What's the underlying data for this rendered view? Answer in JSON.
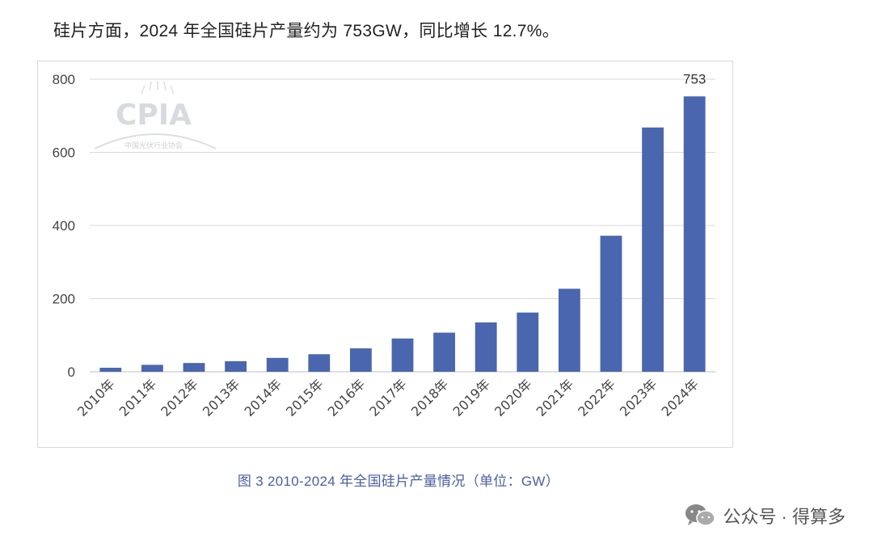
{
  "headline": "硅片方面，2024 年全国硅片产量约为 753GW，同比增长 12.7%。",
  "caption": "图 3    2010-2024 年全国硅片产量情况（单位：GW）",
  "footer": {
    "source": "公众号 · 得算多",
    "icon": "wechat-icon"
  },
  "watermark": {
    "logo": "CPIA",
    "subtitle": "中国光伏行业协会"
  },
  "colors": {
    "bar": "#4a66ae",
    "grid": "#d9d9d9",
    "tick": "#444444",
    "caption": "#4a5fa0"
  },
  "chart_data": {
    "type": "bar",
    "title": "",
    "xlabel": "",
    "ylabel": "",
    "categories": [
      "2010年",
      "2011年",
      "2012年",
      "2013年",
      "2014年",
      "2015年",
      "2016年",
      "2017年",
      "2018年",
      "2019年",
      "2020年",
      "2021年",
      "2022年",
      "2023年",
      "2024年"
    ],
    "values": [
      11,
      19,
      24,
      29,
      38,
      48,
      64,
      91,
      107,
      135,
      162,
      227,
      372,
      668,
      753
    ],
    "data_labels": [
      null,
      null,
      null,
      null,
      null,
      null,
      null,
      null,
      null,
      null,
      null,
      null,
      null,
      null,
      "753"
    ],
    "ylim": [
      0,
      800
    ],
    "yticks": [
      0,
      200,
      400,
      600,
      800
    ],
    "grid": true,
    "legend": "none"
  }
}
